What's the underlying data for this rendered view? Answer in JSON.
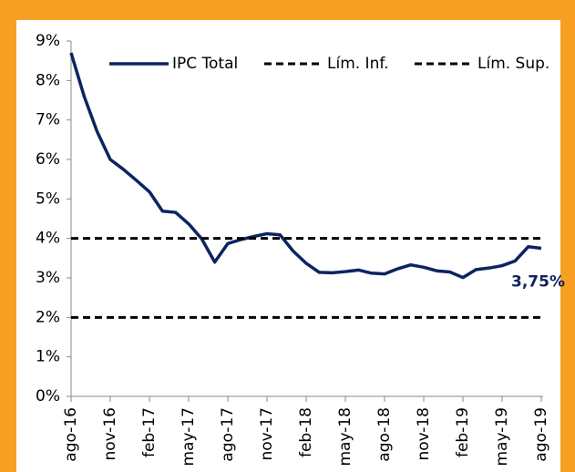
{
  "chart_data": {
    "type": "line",
    "categories": [
      "ago-16",
      null,
      null,
      "nov-16",
      null,
      null,
      "feb-17",
      null,
      null,
      "may-17",
      null,
      null,
      "ago-17",
      null,
      null,
      "nov-17",
      null,
      null,
      "feb-18",
      null,
      null,
      "may-18",
      null,
      null,
      "ago-18",
      null,
      null,
      "nov-18",
      null,
      null,
      "feb-19",
      null,
      null,
      "may-19",
      null,
      null,
      "ago-19"
    ],
    "series": [
      {
        "name": "IPC Total",
        "color": "#0d2460",
        "dash": false,
        "values": [
          8.7,
          7.6,
          6.7,
          6.0,
          5.75,
          5.47,
          5.18,
          4.69,
          4.66,
          4.37,
          3.99,
          3.4,
          3.87,
          3.97,
          4.05,
          4.12,
          4.09,
          3.68,
          3.37,
          3.14,
          3.13,
          3.16,
          3.2,
          3.12,
          3.1,
          3.23,
          3.33,
          3.27,
          3.18,
          3.15,
          3.01,
          3.21,
          3.25,
          3.31,
          3.43,
          3.79,
          3.75
        ],
        "value_labels": [
          null,
          null,
          null,
          null,
          null,
          null,
          null,
          null,
          null,
          null,
          null,
          null,
          null,
          null,
          null,
          null,
          null,
          null,
          null,
          null,
          null,
          null,
          null,
          null,
          null,
          null,
          null,
          null,
          null,
          null,
          null,
          null,
          null,
          null,
          null,
          null,
          "3,75%"
        ]
      },
      {
        "name": "Lím. Inf.",
        "color": "#000000",
        "dash": true,
        "values": [
          2,
          2,
          2,
          2,
          2,
          2,
          2,
          2,
          2,
          2,
          2,
          2,
          2,
          2,
          2,
          2,
          2,
          2,
          2,
          2,
          2,
          2,
          2,
          2,
          2,
          2,
          2,
          2,
          2,
          2,
          2,
          2,
          2,
          2,
          2,
          2,
          2
        ]
      },
      {
        "name": "Lím. Sup.",
        "color": "#000000",
        "dash": true,
        "values": [
          4,
          4,
          4,
          4,
          4,
          4,
          4,
          4,
          4,
          4,
          4,
          4,
          4,
          4,
          4,
          4,
          4,
          4,
          4,
          4,
          4,
          4,
          4,
          4,
          4,
          4,
          4,
          4,
          4,
          4,
          4,
          4,
          4,
          4,
          4,
          4,
          4
        ]
      }
    ],
    "ylim": [
      0,
      9
    ],
    "yticks": [
      {
        "value": 0,
        "label": "0%"
      },
      {
        "value": 1,
        "label": "1%"
      },
      {
        "value": 2,
        "label": "2%"
      },
      {
        "value": 3,
        "label": "3%"
      },
      {
        "value": 4,
        "label": "4%"
      },
      {
        "value": 5,
        "label": "5%"
      },
      {
        "value": 6,
        "label": "6%"
      },
      {
        "value": 7,
        "label": "7%"
      },
      {
        "value": 8,
        "label": "8%"
      },
      {
        "value": 9,
        "label": "9%"
      }
    ],
    "grid": false,
    "legend": "top"
  }
}
